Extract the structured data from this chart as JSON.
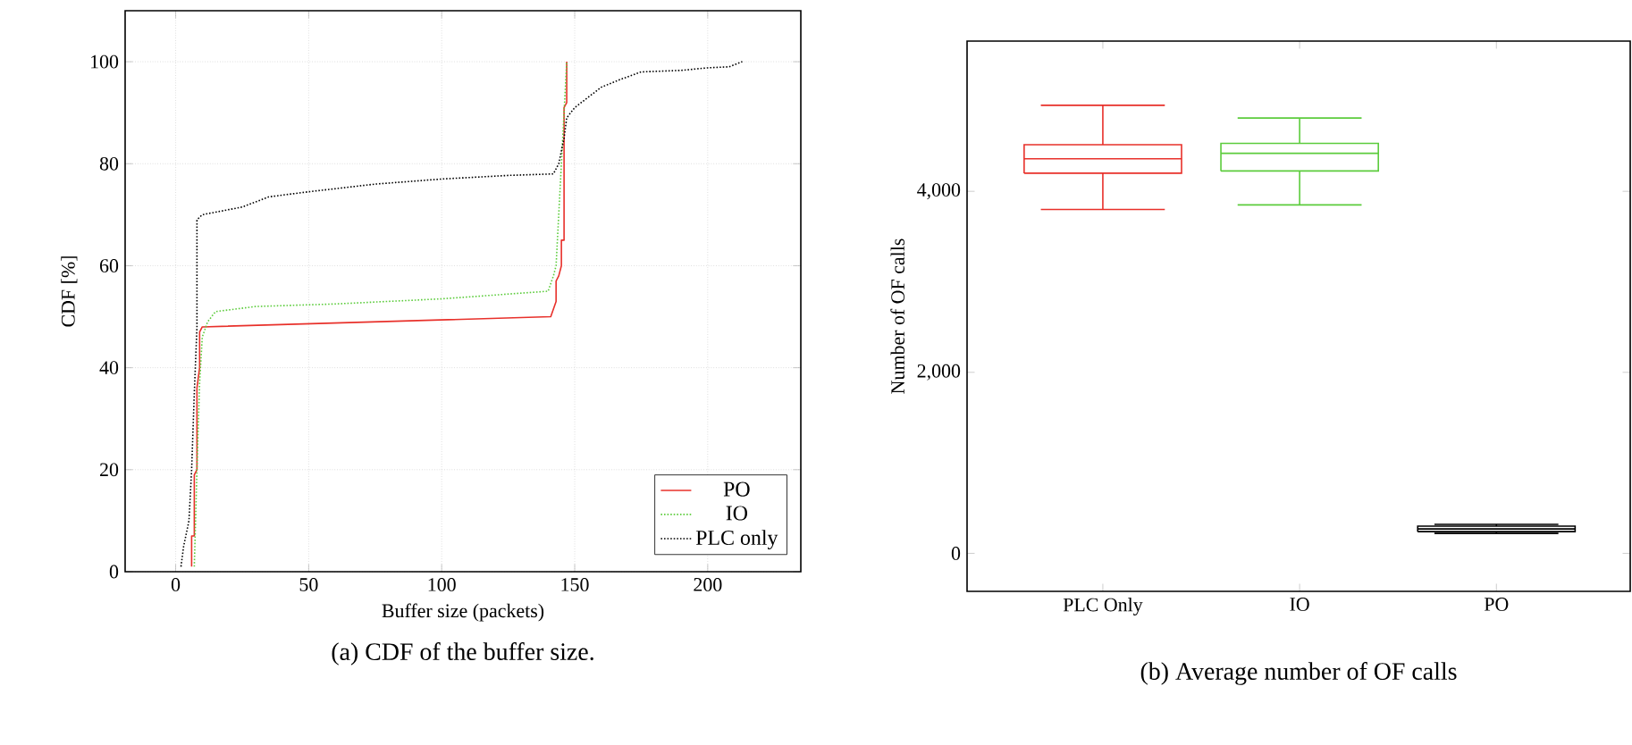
{
  "chart_data": [
    {
      "type": "line",
      "title": "(a) CDF of the buffer size.",
      "xlabel": "Buffer size (packets)",
      "ylabel": "CDF [%]",
      "xlim": [
        -19,
        235
      ],
      "ylim": [
        0,
        110
      ],
      "xticks": [
        0,
        50,
        100,
        150,
        200
      ],
      "yticks": [
        0,
        20,
        40,
        60,
        80,
        100
      ],
      "grid": true,
      "legend": "bottom right",
      "series": [
        {
          "name": "PO",
          "color": "#e8302a",
          "line_style": "solid",
          "x": [
            6,
            6,
            7,
            7,
            8,
            8,
            9,
            9,
            10,
            141,
            143,
            143,
            144,
            145,
            145,
            146,
            146,
            147,
            147
          ],
          "values": [
            1,
            7,
            7,
            19,
            20,
            36,
            40,
            47,
            48,
            50,
            53,
            57,
            58,
            60,
            65,
            65,
            91,
            92,
            100
          ]
        },
        {
          "name": "IO",
          "color": "#5ccc3c",
          "line_style": "dotted",
          "x": [
            7,
            8,
            9,
            10,
            12,
            15,
            30,
            60,
            100,
            140,
            142,
            143,
            144,
            145,
            146,
            147
          ],
          "values": [
            1,
            20,
            37,
            46,
            49,
            51,
            52,
            52.5,
            53.5,
            55,
            58,
            60,
            70,
            80,
            90,
            100
          ]
        },
        {
          "name": "PLC only",
          "color": "#000000",
          "line_style": "dotted",
          "x": [
            2,
            3,
            5,
            6,
            7,
            8,
            8,
            10,
            20,
            25,
            30,
            35,
            50,
            75,
            100,
            125,
            142,
            144,
            146,
            147,
            150,
            155,
            160,
            167,
            175,
            190,
            200,
            208,
            213
          ],
          "values": [
            1,
            5,
            10,
            20,
            35,
            48,
            69,
            70,
            71,
            71.5,
            72.5,
            73.5,
            74.5,
            76,
            77,
            77.7,
            78,
            80,
            85,
            89,
            91,
            93,
            95,
            96.5,
            98,
            98.3,
            98.8,
            99,
            100
          ]
        }
      ]
    },
    {
      "type": "box",
      "title": "(b) Average number of OF calls",
      "ylabel": "Number of OF calls",
      "categories": [
        "PLC Only",
        "IO",
        "PO"
      ],
      "ylim": [
        -420,
        5660
      ],
      "yticks": [
        {
          "value": 0,
          "label": "0"
        },
        {
          "value": 2000,
          "label": "2,000"
        },
        {
          "value": 4000,
          "label": "4,000"
        }
      ],
      "colors": [
        "#e8302a",
        "#5ccc3c",
        "#000000"
      ],
      "boxes": [
        {
          "low": 3800,
          "q1": 4200,
          "median": 4360,
          "q3": 4515,
          "high": 4950
        },
        {
          "low": 3850,
          "q1": 4225,
          "median": 4420,
          "q3": 4530,
          "high": 4810
        },
        {
          "low": 220,
          "q1": 240,
          "median": 270,
          "q3": 300,
          "high": 320
        }
      ]
    }
  ]
}
